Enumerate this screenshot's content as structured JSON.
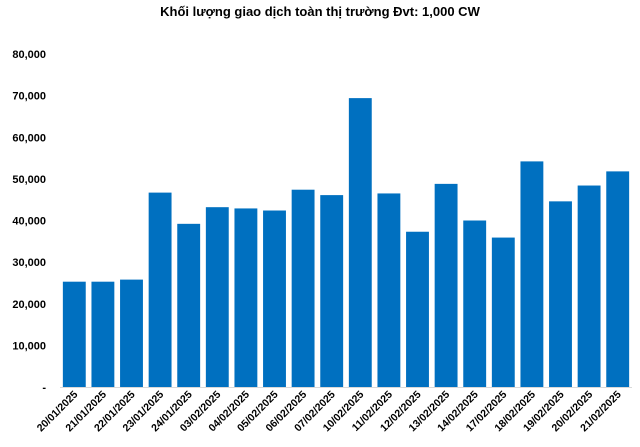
{
  "chart_data": {
    "type": "bar",
    "title": "Khối lượng giao dịch toàn thị trường Đvt: 1,000 CW",
    "xlabel": "",
    "ylabel": "",
    "categories": [
      "20/01/2025",
      "21/01/2025",
      "22/01/2025",
      "23/01/2025",
      "24/01/2025",
      "03/02/2025",
      "04/02/2025",
      "05/02/2025",
      "06/02/2025",
      "07/02/2025",
      "10/02/2025",
      "11/02/2025",
      "12/02/2025",
      "13/02/2025",
      "14/02/2025",
      "17/02/2025",
      "18/02/2025",
      "19/02/2025",
      "20/02/2025",
      "21/02/2025"
    ],
    "values": [
      25300,
      25300,
      25800,
      46700,
      39200,
      43200,
      42900,
      42400,
      47400,
      46100,
      69400,
      46500,
      37300,
      48800,
      40000,
      35900,
      54200,
      44600,
      48400,
      51800
    ],
    "ylim": [
      0,
      80000
    ],
    "yticks": [
      0,
      10000,
      20000,
      30000,
      40000,
      50000,
      60000,
      70000,
      80000
    ],
    "ytick_labels": [
      "-",
      "10,000",
      "20,000",
      "30,000",
      "40,000",
      "50,000",
      "60,000",
      "70,000",
      "80,000"
    ],
    "grid": false,
    "legend": "none",
    "bar_color": "#0070C0",
    "axis_color": "#D9D9D9",
    "text_color": "#000000"
  }
}
